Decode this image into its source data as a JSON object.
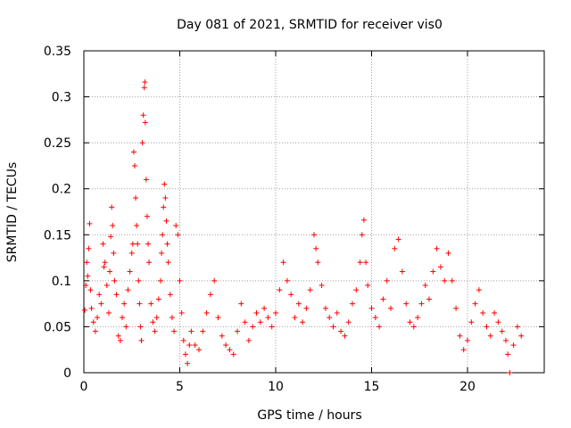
{
  "chart_data": {
    "type": "scatter",
    "title": "Day 081 of 2021, SRMTID for receiver vis0",
    "xlabel": "GPS time / hours",
    "ylabel": "SRMTID / TECUs",
    "xlim": [
      0,
      24
    ],
    "ylim": [
      0,
      0.35
    ],
    "xticks": [
      0,
      5,
      10,
      15,
      20
    ],
    "yticks": [
      0,
      0.05,
      0.1,
      0.15,
      0.2,
      0.25,
      0.3,
      0.35
    ],
    "ytick_labels": [
      "0",
      "0.05",
      "0.1",
      "0.15",
      "0.2",
      "0.25",
      "0.3",
      "0.35"
    ],
    "grid": true,
    "marker": "plus",
    "color": "#ff0000",
    "series": [
      {
        "name": "SRMTID",
        "points": [
          [
            0.05,
            0.068
          ],
          [
            0.1,
            0.095
          ],
          [
            0.15,
            0.12
          ],
          [
            0.2,
            0.105
          ],
          [
            0.25,
            0.135
          ],
          [
            0.3,
            0.162
          ],
          [
            0.35,
            0.09
          ],
          [
            0.4,
            0.07
          ],
          [
            0.5,
            0.055
          ],
          [
            0.6,
            0.045
          ],
          [
            0.7,
            0.06
          ],
          [
            0.8,
            0.085
          ],
          [
            0.9,
            0.075
          ],
          [
            1.0,
            0.14
          ],
          [
            1.05,
            0.115
          ],
          [
            1.1,
            0.12
          ],
          [
            1.2,
            0.095
          ],
          [
            1.3,
            0.065
          ],
          [
            1.35,
            0.11
          ],
          [
            1.4,
            0.148
          ],
          [
            1.45,
            0.18
          ],
          [
            1.5,
            0.16
          ],
          [
            1.55,
            0.13
          ],
          [
            1.6,
            0.1
          ],
          [
            1.7,
            0.085
          ],
          [
            1.8,
            0.04
          ],
          [
            1.9,
            0.035
          ],
          [
            2.0,
            0.06
          ],
          [
            2.1,
            0.075
          ],
          [
            2.2,
            0.05
          ],
          [
            2.3,
            0.09
          ],
          [
            2.4,
            0.11
          ],
          [
            2.5,
            0.13
          ],
          [
            2.55,
            0.14
          ],
          [
            2.6,
            0.24
          ],
          [
            2.65,
            0.225
          ],
          [
            2.7,
            0.19
          ],
          [
            2.75,
            0.16
          ],
          [
            2.8,
            0.14
          ],
          [
            2.85,
            0.1
          ],
          [
            2.9,
            0.075
          ],
          [
            2.95,
            0.05
          ],
          [
            3.0,
            0.035
          ],
          [
            3.05,
            0.25
          ],
          [
            3.1,
            0.28
          ],
          [
            3.15,
            0.31
          ],
          [
            3.18,
            0.316
          ],
          [
            3.2,
            0.272
          ],
          [
            3.25,
            0.21
          ],
          [
            3.3,
            0.17
          ],
          [
            3.35,
            0.14
          ],
          [
            3.4,
            0.12
          ],
          [
            3.5,
            0.075
          ],
          [
            3.6,
            0.055
          ],
          [
            3.7,
            0.045
          ],
          [
            3.8,
            0.06
          ],
          [
            3.9,
            0.08
          ],
          [
            4.0,
            0.1
          ],
          [
            4.05,
            0.13
          ],
          [
            4.1,
            0.15
          ],
          [
            4.15,
            0.18
          ],
          [
            4.2,
            0.205
          ],
          [
            4.25,
            0.19
          ],
          [
            4.3,
            0.165
          ],
          [
            4.35,
            0.14
          ],
          [
            4.4,
            0.12
          ],
          [
            4.5,
            0.085
          ],
          [
            4.6,
            0.06
          ],
          [
            4.7,
            0.045
          ],
          [
            4.8,
            0.16
          ],
          [
            4.9,
            0.15
          ],
          [
            5.0,
            0.1
          ],
          [
            5.1,
            0.065
          ],
          [
            5.2,
            0.035
          ],
          [
            5.3,
            0.02
          ],
          [
            5.4,
            0.01
          ],
          [
            5.5,
            0.03
          ],
          [
            5.6,
            0.045
          ],
          [
            5.8,
            0.03
          ],
          [
            6.0,
            0.025
          ],
          [
            6.2,
            0.045
          ],
          [
            6.4,
            0.065
          ],
          [
            6.6,
            0.085
          ],
          [
            6.8,
            0.1
          ],
          [
            7.0,
            0.06
          ],
          [
            7.2,
            0.04
          ],
          [
            7.4,
            0.03
          ],
          [
            7.6,
            0.025
          ],
          [
            7.8,
            0.02
          ],
          [
            8.0,
            0.045
          ],
          [
            8.2,
            0.075
          ],
          [
            8.4,
            0.055
          ],
          [
            8.6,
            0.035
          ],
          [
            8.8,
            0.05
          ],
          [
            9.0,
            0.065
          ],
          [
            9.2,
            0.055
          ],
          [
            9.4,
            0.07
          ],
          [
            9.6,
            0.06
          ],
          [
            9.8,
            0.05
          ],
          [
            10.0,
            0.065
          ],
          [
            10.2,
            0.09
          ],
          [
            10.4,
            0.12
          ],
          [
            10.6,
            0.1
          ],
          [
            10.8,
            0.085
          ],
          [
            11.0,
            0.06
          ],
          [
            11.2,
            0.075
          ],
          [
            11.4,
            0.055
          ],
          [
            11.6,
            0.07
          ],
          [
            11.8,
            0.09
          ],
          [
            12.0,
            0.15
          ],
          [
            12.1,
            0.135
          ],
          [
            12.2,
            0.12
          ],
          [
            12.4,
            0.095
          ],
          [
            12.6,
            0.07
          ],
          [
            12.8,
            0.06
          ],
          [
            13.0,
            0.05
          ],
          [
            13.2,
            0.065
          ],
          [
            13.4,
            0.045
          ],
          [
            13.6,
            0.04
          ],
          [
            13.8,
            0.055
          ],
          [
            14.0,
            0.075
          ],
          [
            14.2,
            0.09
          ],
          [
            14.4,
            0.12
          ],
          [
            14.5,
            0.15
          ],
          [
            14.6,
            0.166
          ],
          [
            14.7,
            0.12
          ],
          [
            14.8,
            0.095
          ],
          [
            15.0,
            0.07
          ],
          [
            15.2,
            0.06
          ],
          [
            15.4,
            0.05
          ],
          [
            15.6,
            0.08
          ],
          [
            15.8,
            0.1
          ],
          [
            16.0,
            0.07
          ],
          [
            16.2,
            0.135
          ],
          [
            16.4,
            0.145
          ],
          [
            16.6,
            0.11
          ],
          [
            16.8,
            0.075
          ],
          [
            17.0,
            0.055
          ],
          [
            17.2,
            0.05
          ],
          [
            17.4,
            0.06
          ],
          [
            17.6,
            0.075
          ],
          [
            17.8,
            0.095
          ],
          [
            18.0,
            0.08
          ],
          [
            18.2,
            0.11
          ],
          [
            18.4,
            0.135
          ],
          [
            18.6,
            0.115
          ],
          [
            18.8,
            0.1
          ],
          [
            19.0,
            0.13
          ],
          [
            19.2,
            0.1
          ],
          [
            19.4,
            0.07
          ],
          [
            19.6,
            0.04
          ],
          [
            19.8,
            0.025
          ],
          [
            20.0,
            0.035
          ],
          [
            20.2,
            0.055
          ],
          [
            20.4,
            0.075
          ],
          [
            20.6,
            0.09
          ],
          [
            20.8,
            0.065
          ],
          [
            21.0,
            0.05
          ],
          [
            21.2,
            0.04
          ],
          [
            21.4,
            0.065
          ],
          [
            21.6,
            0.055
          ],
          [
            21.8,
            0.045
          ],
          [
            22.0,
            0.035
          ],
          [
            22.1,
            0.02
          ],
          [
            22.2,
            0.0
          ],
          [
            22.4,
            0.03
          ],
          [
            22.6,
            0.05
          ],
          [
            22.8,
            0.04
          ]
        ]
      }
    ]
  }
}
